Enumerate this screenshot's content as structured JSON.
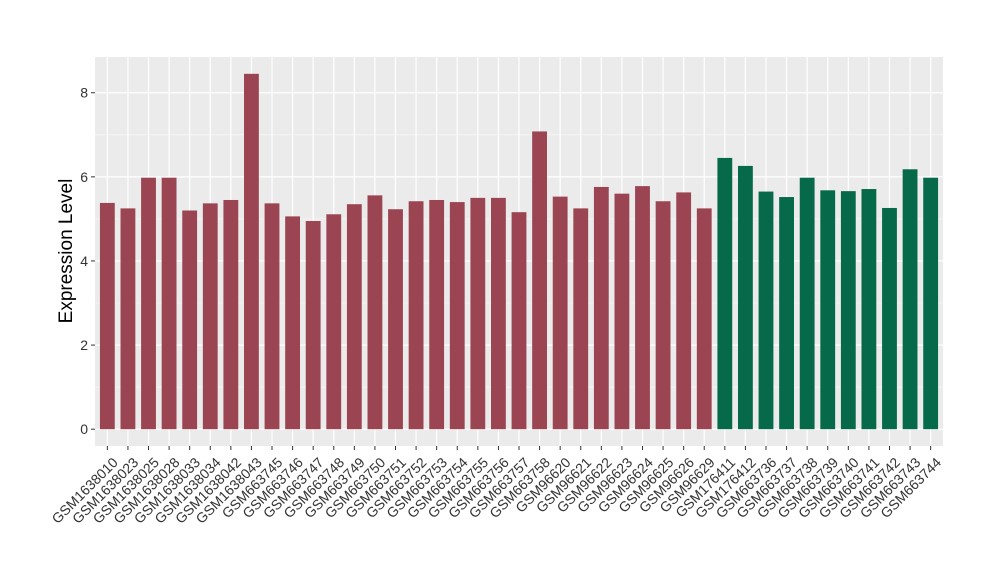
{
  "chart_data": {
    "type": "bar",
    "title": "",
    "xlabel": "",
    "ylabel": "Expression Level",
    "ylim": [
      -0.4,
      8.85
    ],
    "yticks": [
      0,
      2,
      4,
      6,
      8
    ],
    "grid": true,
    "categories": [
      "GSM1638010",
      "GSM1638023",
      "GSM1638025",
      "GSM1638028",
      "GSM1638033",
      "GSM1638034",
      "GSM1638042",
      "GSM1638043",
      "GSM663745",
      "GSM663746",
      "GSM663747",
      "GSM663748",
      "GSM663749",
      "GSM663750",
      "GSM663751",
      "GSM663752",
      "GSM663753",
      "GSM663754",
      "GSM663755",
      "GSM663756",
      "GSM663757",
      "GSM663758",
      "GSM96620",
      "GSM96621",
      "GSM96622",
      "GSM96623",
      "GSM96624",
      "GSM96625",
      "GSM96626",
      "GSM96629",
      "GSM176411",
      "GSM176412",
      "GSM663736",
      "GSM663737",
      "GSM663738",
      "GSM663739",
      "GSM663740",
      "GSM663741",
      "GSM663742",
      "GSM663743",
      "GSM663744"
    ],
    "values": [
      5.38,
      5.25,
      5.98,
      5.98,
      5.2,
      5.37,
      5.45,
      8.45,
      5.37,
      5.06,
      4.95,
      5.11,
      5.35,
      5.56,
      5.23,
      5.42,
      5.45,
      5.4,
      5.5,
      5.5,
      5.16,
      7.08,
      5.53,
      5.25,
      5.76,
      5.6,
      5.78,
      5.42,
      5.63,
      5.25,
      6.45,
      6.26,
      5.65,
      5.52,
      5.98,
      5.68,
      5.66,
      5.71,
      5.26,
      6.18,
      5.98
    ],
    "groups": [
      {
        "count": 30,
        "color": "#9b4452"
      },
      {
        "count": 11,
        "color": "#06694a"
      }
    ]
  }
}
